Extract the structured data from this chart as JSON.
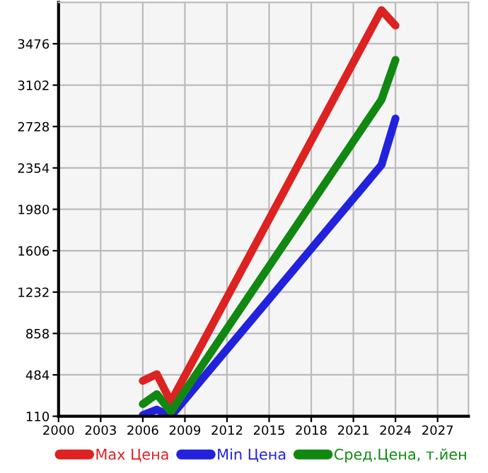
{
  "chart_data": {
    "type": "line",
    "x": [
      2006,
      2007,
      2008,
      2023,
      2024
    ],
    "series": [
      {
        "name": "Max Цена",
        "color": "#dd2222",
        "values": [
          430,
          490,
          240,
          3780,
          3640
        ]
      },
      {
        "name": "Min Цена",
        "color": "#2222dd",
        "values": [
          120,
          170,
          110,
          2380,
          2800
        ]
      },
      {
        "name": "Сред.Цена, т.йен",
        "color": "#118811",
        "values": [
          220,
          310,
          150,
          2970,
          3330
        ]
      }
    ],
    "xlim": [
      2000,
      2029.2
    ],
    "xticks": [
      2000,
      2003,
      2006,
      2009,
      2012,
      2015,
      2018,
      2021,
      2024,
      2027
    ],
    "ylim": [
      110,
      3850
    ],
    "yticks": [
      110,
      484,
      858,
      1232,
      1606,
      1980,
      2354,
      2728,
      3102,
      3476
    ],
    "grid": true,
    "legend": "bottom",
    "marker": "none",
    "line_style": "solid"
  }
}
